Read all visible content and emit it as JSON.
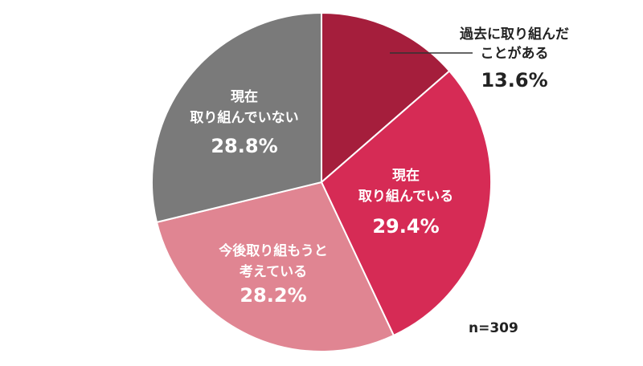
{
  "chart_data": {
    "type": "pie",
    "start_angle_deg": 0,
    "direction": "clockwise",
    "slices": [
      {
        "label_lines": [
          "過去に取り組んだ",
          "ことがある"
        ],
        "value": 13.6,
        "value_label": "13.6%",
        "color": "#A51E3C",
        "label_outside": true
      },
      {
        "label_lines": [
          "現在",
          "取り組んでいる"
        ],
        "value": 29.4,
        "value_label": "29.4%",
        "color": "#D62B55",
        "label_outside": false
      },
      {
        "label_lines": [
          "今後取り組もうと",
          "考えている"
        ],
        "value": 28.2,
        "value_label": "28.2%",
        "color": "#E08592",
        "label_outside": false
      },
      {
        "label_lines": [
          "現在",
          "取り組んでいない"
        ],
        "value": 28.8,
        "value_label": "28.8%",
        "color": "#7A7A7A",
        "label_outside": false
      }
    ],
    "sample_size_label": "n=309"
  }
}
